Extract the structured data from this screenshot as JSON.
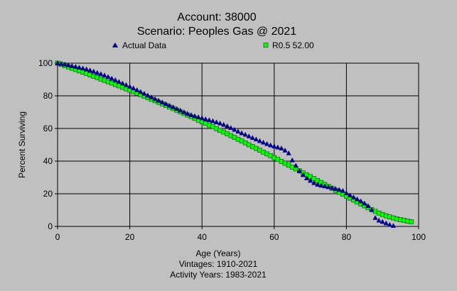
{
  "chart_data": {
    "type": "scatter",
    "title_lines": [
      "Account: 38000",
      "Scenario: Peoples Gas @ 2021"
    ],
    "xlabel": "Age (Years)",
    "ylabel": "Percent Surviving",
    "footer_lines": [
      "Vintages: 1910-2021",
      "Activity Years: 1983-2021"
    ],
    "xlim": [
      0,
      100
    ],
    "ylim": [
      0,
      100
    ],
    "x_ticks": [
      0,
      20,
      40,
      60,
      80,
      100
    ],
    "y_ticks": [
      0,
      20,
      40,
      60,
      80,
      100
    ],
    "grid": true,
    "legend_placement": "top",
    "series": [
      {
        "name": "Actual Data",
        "marker": "triangle",
        "color": "#0000a0",
        "points": [
          [
            0,
            100
          ],
          [
            1,
            99.6
          ],
          [
            2,
            99.2
          ],
          [
            3,
            98.7
          ],
          [
            4,
            98.2
          ],
          [
            5,
            97.8
          ],
          [
            6,
            97.3
          ],
          [
            7,
            96.8
          ],
          [
            8,
            96.3
          ],
          [
            9,
            95.6
          ],
          [
            10,
            94.9
          ],
          [
            11,
            94.1
          ],
          [
            12,
            93.3
          ],
          [
            13,
            92.5
          ],
          [
            14,
            91.6
          ],
          [
            15,
            90.6
          ],
          [
            16,
            89.6
          ],
          [
            17,
            88.6
          ],
          [
            18,
            87.6
          ],
          [
            19,
            86.6
          ],
          [
            20,
            85.6
          ],
          [
            21,
            84.6
          ],
          [
            22,
            83.5
          ],
          [
            23,
            82.4
          ],
          [
            24,
            81.3
          ],
          [
            25,
            80.2
          ],
          [
            26,
            79.1
          ],
          [
            27,
            78.0
          ],
          [
            28,
            77.0
          ],
          [
            29,
            76.0
          ],
          [
            30,
            75.0
          ],
          [
            31,
            74.0
          ],
          [
            32,
            73.0
          ],
          [
            33,
            72.0
          ],
          [
            34,
            71.0
          ],
          [
            35,
            70.0
          ],
          [
            36,
            69.0
          ],
          [
            37,
            68.2
          ],
          [
            38,
            67.5
          ],
          [
            39,
            66.9
          ],
          [
            40,
            66.3
          ],
          [
            41,
            65.7
          ],
          [
            42,
            65.1
          ],
          [
            43,
            64.5
          ],
          [
            44,
            63.8
          ],
          [
            45,
            63.1
          ],
          [
            46,
            62.3
          ],
          [
            47,
            61.4
          ],
          [
            48,
            60.3
          ],
          [
            49,
            59.2
          ],
          [
            50,
            58.1
          ],
          [
            51,
            57.1
          ],
          [
            52,
            56.2
          ],
          [
            53,
            55.2
          ],
          [
            54,
            54.2
          ],
          [
            55,
            53.3
          ],
          [
            56,
            52.3
          ],
          [
            57,
            51.4
          ],
          [
            58,
            50.5
          ],
          [
            59,
            49.7
          ],
          [
            60,
            49.0
          ],
          [
            61,
            48.4
          ],
          [
            62,
            47.8
          ],
          [
            63,
            46.5
          ],
          [
            64,
            44.8
          ],
          [
            65,
            40.5
          ],
          [
            66,
            37.2
          ],
          [
            67,
            34.0
          ],
          [
            68,
            31.5
          ],
          [
            69,
            29.5
          ],
          [
            70,
            28.0
          ],
          [
            71,
            26.6
          ],
          [
            72,
            25.6
          ],
          [
            73,
            25.0
          ],
          [
            74,
            24.6
          ],
          [
            75,
            24.1
          ],
          [
            76,
            23.6
          ],
          [
            77,
            23.0
          ],
          [
            78,
            22.4
          ],
          [
            79,
            21.8
          ],
          [
            80,
            20.4
          ],
          [
            81,
            19.0
          ],
          [
            82,
            17.8
          ],
          [
            83,
            16.6
          ],
          [
            84,
            15.4
          ],
          [
            85,
            14.1
          ],
          [
            86,
            12.5
          ],
          [
            87,
            10.1
          ],
          [
            88,
            5.2
          ],
          [
            89,
            3.6
          ],
          [
            90,
            2.8
          ],
          [
            91,
            1.9
          ],
          [
            92,
            1.0
          ],
          [
            93,
            0.4
          ]
        ]
      },
      {
        "name": "R0.5 52.00",
        "marker": "square",
        "color": "#00ff00",
        "points": [
          [
            0,
            100
          ],
          [
            1,
            99.3
          ],
          [
            2,
            98.5
          ],
          [
            3,
            97.7
          ],
          [
            4,
            96.9
          ],
          [
            5,
            96.1
          ],
          [
            6,
            95.3
          ],
          [
            7,
            94.5
          ],
          [
            8,
            93.7
          ],
          [
            9,
            92.8
          ],
          [
            10,
            92.0
          ],
          [
            11,
            91.2
          ],
          [
            12,
            90.3
          ],
          [
            13,
            89.5
          ],
          [
            14,
            88.6
          ],
          [
            15,
            87.8
          ],
          [
            16,
            86.9
          ],
          [
            17,
            86.1
          ],
          [
            18,
            85.2
          ],
          [
            19,
            84.3
          ],
          [
            20,
            83.4
          ],
          [
            21,
            82.5
          ],
          [
            22,
            81.6
          ],
          [
            23,
            80.7
          ],
          [
            24,
            79.8
          ],
          [
            25,
            78.8
          ],
          [
            26,
            77.9
          ],
          [
            27,
            77.0
          ],
          [
            28,
            76.0
          ],
          [
            29,
            75.1
          ],
          [
            30,
            74.1
          ],
          [
            31,
            73.1
          ],
          [
            32,
            72.2
          ],
          [
            33,
            71.2
          ],
          [
            34,
            70.2
          ],
          [
            35,
            69.2
          ],
          [
            36,
            68.2
          ],
          [
            37,
            67.2
          ],
          [
            38,
            66.2
          ],
          [
            39,
            65.1
          ],
          [
            40,
            64.1
          ],
          [
            41,
            63.1
          ],
          [
            42,
            62.0
          ],
          [
            43,
            61.0
          ],
          [
            44,
            59.9
          ],
          [
            45,
            58.8
          ],
          [
            46,
            57.8
          ],
          [
            47,
            56.7
          ],
          [
            48,
            55.6
          ],
          [
            49,
            54.5
          ],
          [
            50,
            53.4
          ],
          [
            51,
            52.3
          ],
          [
            52,
            51.2
          ],
          [
            53,
            50.0
          ],
          [
            54,
            48.9
          ],
          [
            55,
            47.8
          ],
          [
            56,
            46.7
          ],
          [
            57,
            45.5
          ],
          [
            58,
            44.4
          ],
          [
            59,
            43.3
          ],
          [
            60,
            42.1
          ],
          [
            61,
            41.0
          ],
          [
            62,
            39.8
          ],
          [
            63,
            38.7
          ],
          [
            64,
            37.5
          ],
          [
            65,
            36.3
          ],
          [
            66,
            35.2
          ],
          [
            67,
            34.0
          ],
          [
            68,
            32.8
          ],
          [
            69,
            31.6
          ],
          [
            70,
            30.5
          ],
          [
            71,
            29.3
          ],
          [
            72,
            28.1
          ],
          [
            73,
            26.9
          ],
          [
            74,
            25.7
          ],
          [
            75,
            24.5
          ],
          [
            76,
            23.3
          ],
          [
            77,
            22.1
          ],
          [
            78,
            20.9
          ],
          [
            79,
            19.7
          ],
          [
            80,
            18.5
          ],
          [
            81,
            17.3
          ],
          [
            82,
            16.1
          ],
          [
            83,
            14.9
          ],
          [
            84,
            13.7
          ],
          [
            85,
            12.6
          ],
          [
            86,
            11.4
          ],
          [
            87,
            10.3
          ],
          [
            88,
            9.2
          ],
          [
            89,
            8.2
          ],
          [
            90,
            7.3
          ],
          [
            91,
            6.5
          ],
          [
            92,
            5.8
          ],
          [
            93,
            5.2
          ],
          [
            94,
            4.6
          ],
          [
            95,
            4.1
          ],
          [
            96,
            3.6
          ],
          [
            97,
            3.2
          ],
          [
            98,
            2.8
          ]
        ]
      }
    ]
  }
}
